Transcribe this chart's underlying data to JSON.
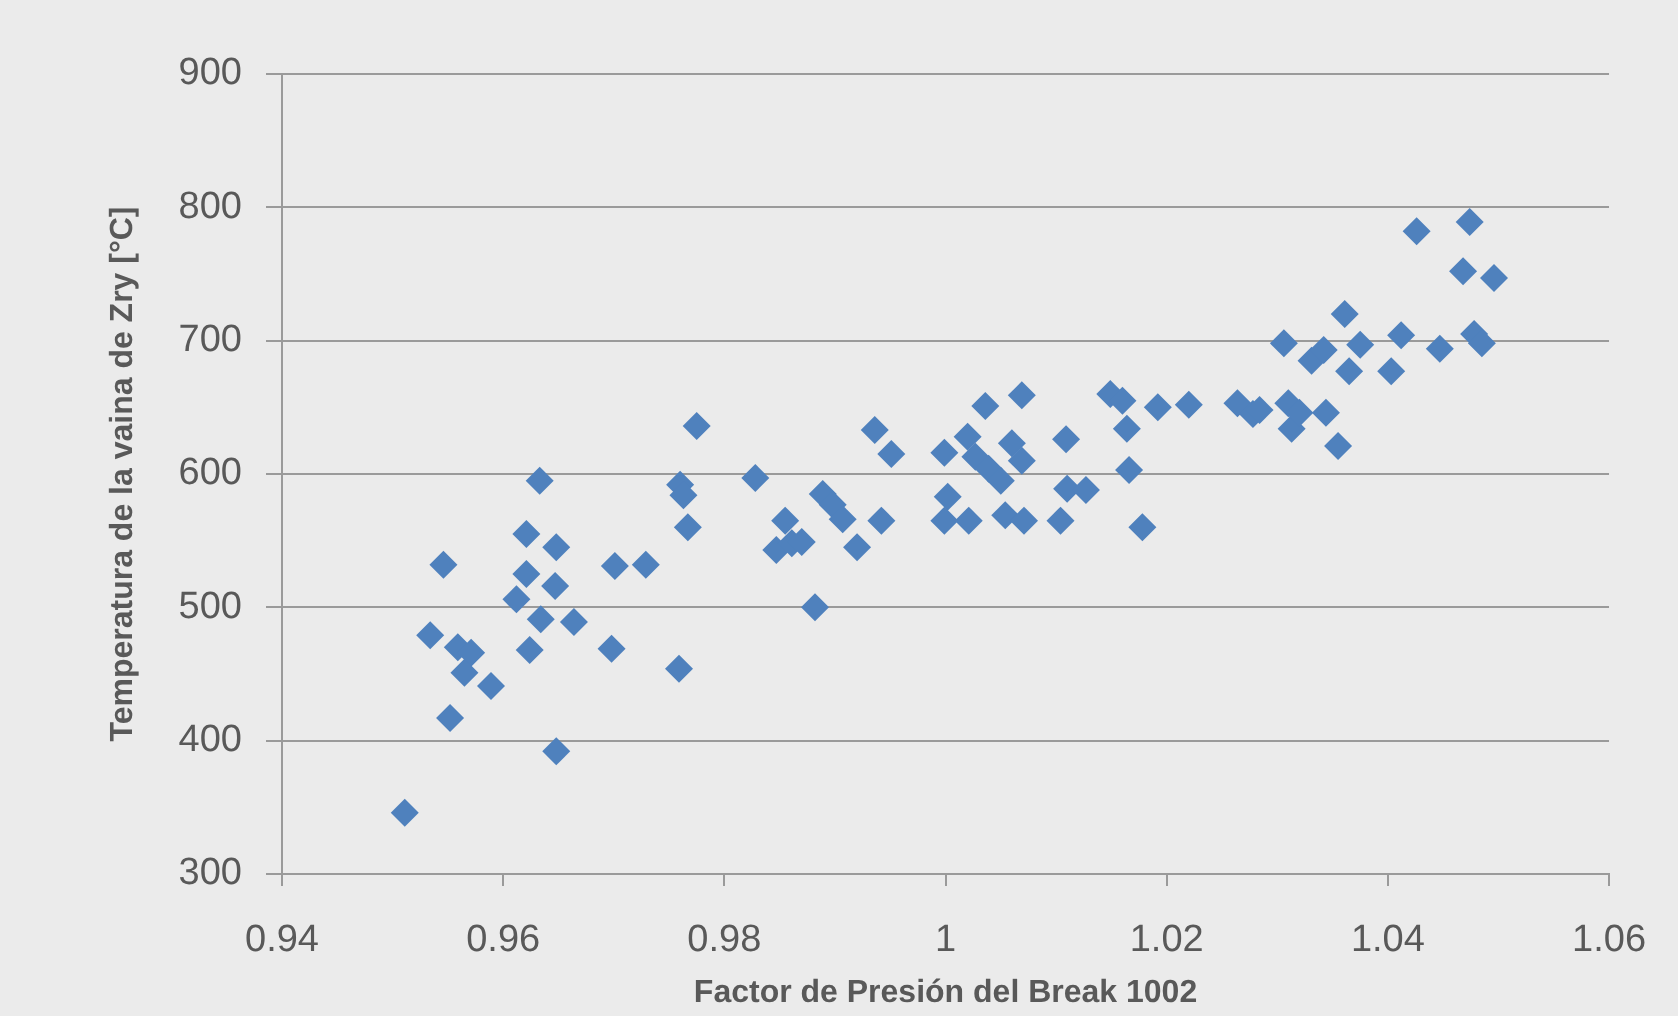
{
  "chart_data": {
    "type": "scatter",
    "xlabel": "Factor de Presión del Break 1002",
    "ylabel": "Temperatura de la vaina de Zry [°C]",
    "x": [
      0.9511,
      0.9534,
      0.9546,
      0.9552,
      0.9559,
      0.9571,
      0.9565,
      0.9589,
      0.9612,
      0.9621,
      0.9621,
      0.9624,
      0.9633,
      0.9634,
      0.9647,
      0.9648,
      0.9648,
      0.9664,
      0.9698,
      0.9701,
      0.9729,
      0.9759,
      0.976,
      0.9763,
      0.9767,
      0.9775,
      0.9828,
      0.9847,
      0.9855,
      0.9861,
      0.987,
      0.9882,
      0.9889,
      0.9898,
      0.9907,
      0.992,
      0.9942,
      0.9936,
      0.9951,
      0.9999,
      1.0002,
      0.9999,
      1.0021,
      1.002,
      1.0036,
      1.0069,
      1.0027,
      1.0039,
      1.005,
      1.006,
      1.0069,
      1.0054,
      1.0071,
      1.0104,
      1.011,
      1.0127,
      1.0109,
      1.0149,
      1.016,
      1.0164,
      1.0166,
      1.0178,
      1.0192,
      1.022,
      1.0264,
      1.0278,
      1.0284,
      1.0306,
      1.031,
      1.0313,
      1.032,
      1.0331,
      1.0342,
      1.0344,
      1.0355,
      1.0361,
      1.0365,
      1.0375,
      1.0403,
      1.0412,
      1.0426,
      1.0447,
      1.0468,
      1.0474,
      1.0478,
      1.0485,
      1.0496
    ],
    "values": [
      346,
      479,
      532,
      417,
      470,
      466,
      451,
      441,
      506,
      555,
      525,
      468,
      595,
      491,
      516,
      545,
      392,
      489,
      469,
      531,
      532,
      454,
      592,
      584,
      560,
      636,
      597,
      543,
      565,
      548,
      549,
      500,
      585,
      577,
      566,
      545,
      565,
      633,
      615,
      616,
      583,
      565,
      565,
      628,
      651,
      659,
      613,
      604,
      595,
      623,
      610,
      569,
      565,
      565,
      589,
      588,
      626,
      660,
      655,
      634,
      603,
      560,
      650,
      652,
      653,
      645,
      648,
      698,
      653,
      634,
      646,
      685,
      693,
      646,
      621,
      720,
      677,
      697,
      677,
      704,
      782,
      694,
      752,
      789,
      705,
      698,
      747
    ],
    "color": "#4f81bd",
    "marker": "diamond",
    "xlim": [
      0.94,
      1.06
    ],
    "xticks": [
      0.94,
      0.96,
      0.98,
      1,
      1.02,
      1.04,
      1.06
    ],
    "ylim": [
      300,
      900
    ],
    "yticks": [
      300,
      400,
      500,
      600,
      700,
      800,
      900
    ],
    "grid": "y"
  }
}
